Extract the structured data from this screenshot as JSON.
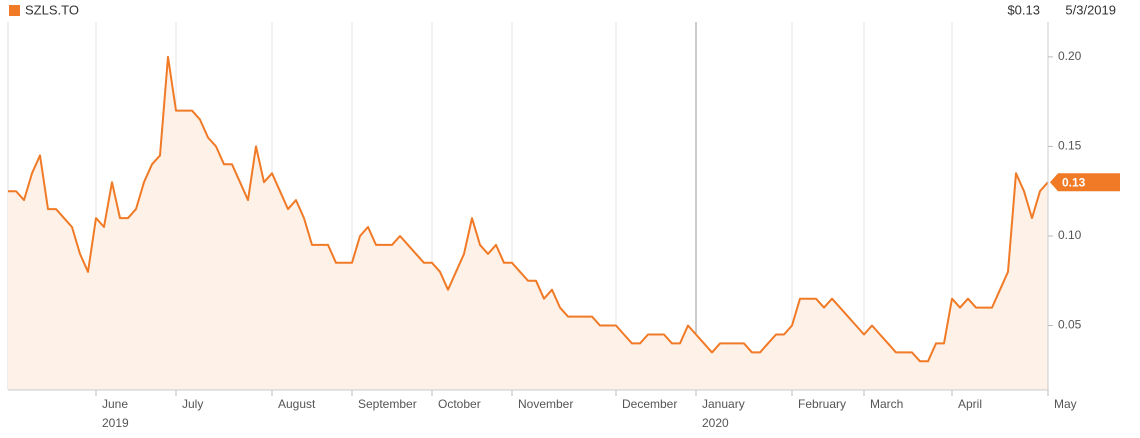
{
  "chart_data": {
    "type": "area",
    "header_price": "$0.13",
    "header_date": "5/3/2019",
    "categories": [
      null,
      null,
      null,
      null,
      null,
      null,
      null,
      null,
      null,
      null,
      null,
      "June\n2019",
      null,
      null,
      null,
      null,
      null,
      null,
      null,
      null,
      null,
      "July",
      null,
      null,
      null,
      null,
      null,
      null,
      null,
      null,
      null,
      null,
      null,
      "August",
      null,
      null,
      null,
      null,
      null,
      null,
      null,
      null,
      null,
      "September",
      null,
      null,
      null,
      null,
      null,
      null,
      null,
      null,
      null,
      "October",
      null,
      null,
      null,
      null,
      null,
      null,
      null,
      null,
      null,
      "November",
      null,
      null,
      null,
      null,
      null,
      null,
      null,
      null,
      null,
      null,
      null,
      null,
      "December",
      null,
      null,
      null,
      null,
      null,
      null,
      null,
      null,
      null,
      "January\n2020",
      null,
      null,
      null,
      null,
      null,
      null,
      null,
      null,
      null,
      null,
      null,
      "February",
      null,
      null,
      null,
      null,
      null,
      null,
      null,
      null,
      "March",
      null,
      null,
      null,
      null,
      null,
      null,
      null,
      null,
      null,
      null,
      "April",
      null,
      null,
      null,
      null,
      null,
      null,
      null,
      null,
      null,
      null,
      null,
      "May"
    ],
    "series": [
      {
        "name": "SZLS.TO",
        "color": "#f07a26",
        "fill_color": "#fdf1e8",
        "values": [
          0.125,
          0.125,
          0.12,
          0.135,
          0.145,
          0.115,
          0.115,
          0.11,
          0.105,
          0.09,
          0.08,
          0.11,
          0.105,
          0.13,
          0.11,
          0.11,
          0.115,
          0.13,
          0.14,
          0.145,
          0.2,
          0.17,
          0.17,
          0.17,
          0.165,
          0.155,
          0.15,
          0.14,
          0.14,
          0.13,
          0.12,
          0.15,
          0.13,
          0.135,
          0.125,
          0.115,
          0.12,
          0.11,
          0.095,
          0.095,
          0.095,
          0.085,
          0.085,
          0.085,
          0.1,
          0.105,
          0.095,
          0.095,
          0.095,
          0.1,
          0.095,
          0.09,
          0.085,
          0.085,
          0.08,
          0.07,
          0.08,
          0.09,
          0.11,
          0.095,
          0.09,
          0.095,
          0.085,
          0.085,
          0.08,
          0.075,
          0.075,
          0.065,
          0.07,
          0.06,
          0.055,
          0.055,
          0.055,
          0.055,
          0.05,
          0.05,
          0.05,
          0.045,
          0.04,
          0.04,
          0.045,
          0.045,
          0.045,
          0.04,
          0.04,
          0.05,
          0.045,
          0.04,
          0.035,
          0.04,
          0.04,
          0.04,
          0.04,
          0.035,
          0.035,
          0.04,
          0.045,
          0.045,
          0.05,
          0.065,
          0.065,
          0.065,
          0.06,
          0.065,
          0.06,
          0.055,
          0.05,
          0.045,
          0.05,
          0.045,
          0.04,
          0.035,
          0.035,
          0.035,
          0.03,
          0.03,
          0.04,
          0.04,
          0.065,
          0.06,
          0.065,
          0.06,
          0.06,
          0.06,
          0.07,
          0.08,
          0.135,
          0.125,
          0.11,
          0.125,
          0.13
        ]
      }
    ],
    "last_price": 0.13,
    "ylim": [
      0.014,
      0.215
    ],
    "yticks": [
      0.05,
      {
        "value": 0.1,
        "label": "0.10"
      },
      0.15,
      {
        "value": 0.2,
        "label": "0.20"
      }
    ]
  }
}
